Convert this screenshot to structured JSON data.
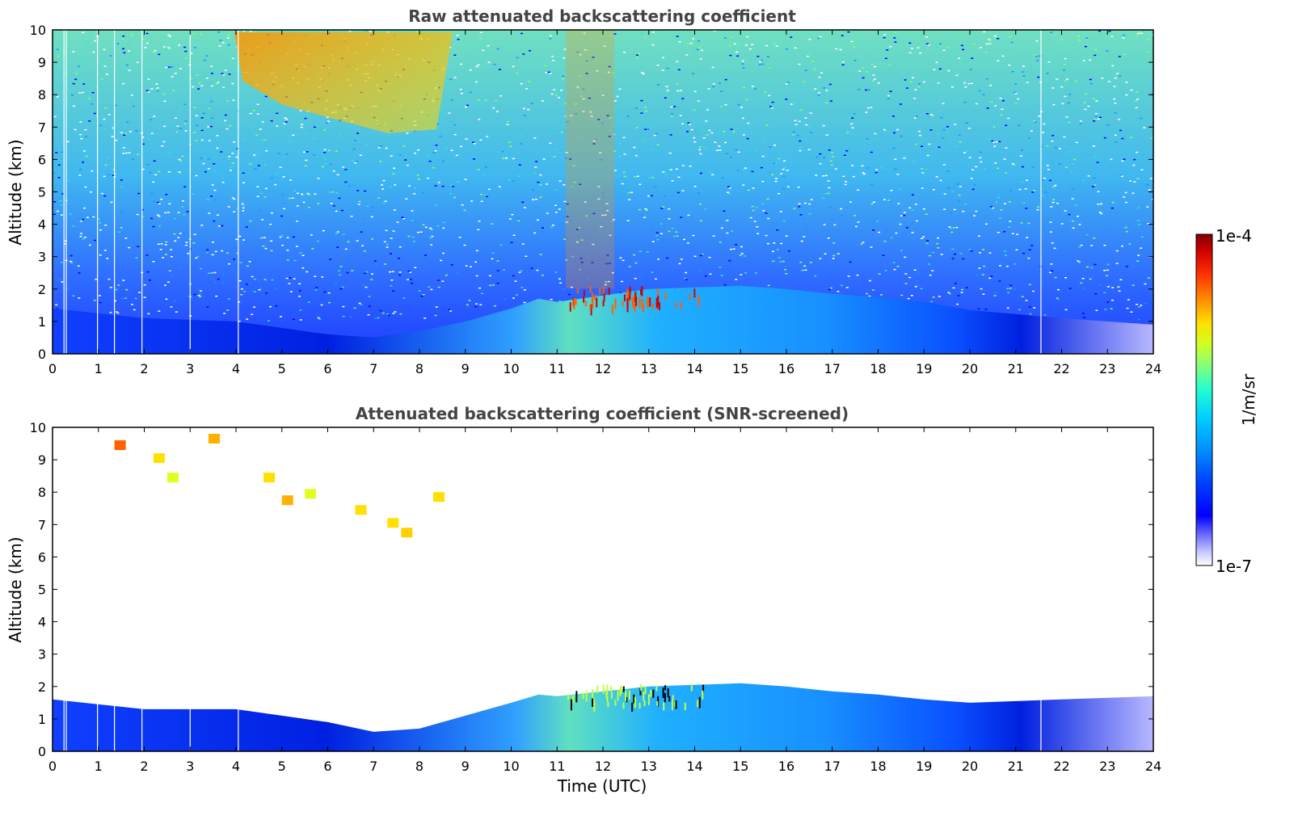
{
  "chart_data": [
    {
      "type": "heatmap",
      "title": "Raw attenuated backscattering coefficient",
      "xlabel": "",
      "ylabel": "Altitude (km)",
      "xlim": [
        0,
        24
      ],
      "ylim": [
        0,
        10
      ],
      "xticks": [
        "0",
        "1",
        "2",
        "3",
        "4",
        "5",
        "6",
        "7",
        "8",
        "9",
        "10",
        "11",
        "12",
        "13",
        "14",
        "15",
        "16",
        "17",
        "18",
        "19",
        "20",
        "21",
        "22",
        "23",
        "24"
      ],
      "yticks": [
        "0",
        "1",
        "2",
        "3",
        "4",
        "5",
        "6",
        "7",
        "8",
        "9",
        "10"
      ],
      "boundary_layer_top_km": [
        {
          "t": 0,
          "h": 1.4
        },
        {
          "t": 2,
          "h": 1.1
        },
        {
          "t": 4,
          "h": 1.0
        },
        {
          "t": 6,
          "h": 0.6
        },
        {
          "t": 7,
          "h": 0.5
        },
        {
          "t": 8,
          "h": 0.7
        },
        {
          "t": 9,
          "h": 1.0
        },
        {
          "t": 10,
          "h": 1.4
        },
        {
          "t": 10.6,
          "h": 1.7
        },
        {
          "t": 11,
          "h": 1.6
        },
        {
          "t": 12,
          "h": 1.8
        },
        {
          "t": 13,
          "h": 2.0
        },
        {
          "t": 14,
          "h": 2.05
        },
        {
          "t": 15,
          "h": 2.1
        },
        {
          "t": 16,
          "h": 2.0
        },
        {
          "t": 17,
          "h": 1.85
        },
        {
          "t": 18,
          "h": 1.75
        },
        {
          "t": 19,
          "h": 1.6
        },
        {
          "t": 20,
          "h": 1.35
        },
        {
          "t": 22,
          "h": 1.1
        },
        {
          "t": 24,
          "h": 0.9
        }
      ],
      "noise": true
    },
    {
      "type": "heatmap",
      "title": "Attenuated backscattering coefficient (SNR-screened)",
      "xlabel": "Time (UTC)",
      "ylabel": "Altitude (km)",
      "xlim": [
        0,
        24
      ],
      "ylim": [
        0,
        10
      ],
      "xticks": [
        "0",
        "1",
        "2",
        "3",
        "4",
        "5",
        "6",
        "7",
        "8",
        "9",
        "10",
        "11",
        "12",
        "13",
        "14",
        "15",
        "16",
        "17",
        "18",
        "19",
        "20",
        "21",
        "22",
        "23",
        "24"
      ],
      "yticks": [
        "0",
        "1",
        "2",
        "3",
        "4",
        "5",
        "6",
        "7",
        "8",
        "9",
        "10"
      ],
      "boundary_layer_top_km": [
        {
          "t": 0,
          "h": 1.6
        },
        {
          "t": 2,
          "h": 1.3
        },
        {
          "t": 4,
          "h": 1.3
        },
        {
          "t": 6,
          "h": 0.9
        },
        {
          "t": 7,
          "h": 0.6
        },
        {
          "t": 8,
          "h": 0.7
        },
        {
          "t": 9,
          "h": 1.1
        },
        {
          "t": 10,
          "h": 1.5
        },
        {
          "t": 10.6,
          "h": 1.75
        },
        {
          "t": 11,
          "h": 1.7
        },
        {
          "t": 12,
          "h": 1.85
        },
        {
          "t": 13,
          "h": 2.0
        },
        {
          "t": 14,
          "h": 2.05
        },
        {
          "t": 15,
          "h": 2.1
        },
        {
          "t": 16,
          "h": 2.0
        },
        {
          "t": 17,
          "h": 1.85
        },
        {
          "t": 18,
          "h": 1.75
        },
        {
          "t": 19,
          "h": 1.6
        },
        {
          "t": 20,
          "h": 1.5
        },
        {
          "t": 22,
          "h": 1.6
        },
        {
          "t": 24,
          "h": 1.7
        }
      ],
      "noise": false
    }
  ],
  "colorbar": {
    "max_label": "1e-4",
    "min_label": "1e-7",
    "unit_label": "1/m/sr",
    "colormap": [
      "#ffffff",
      "#c8c8ff",
      "#7070ff",
      "#0000ff",
      "#0040ff",
      "#0090ff",
      "#00d0ff",
      "#20ffd0",
      "#80ff80",
      "#d0ff20",
      "#ffe000",
      "#ff9000",
      "#ff3000",
      "#d00000",
      "#800000"
    ]
  }
}
